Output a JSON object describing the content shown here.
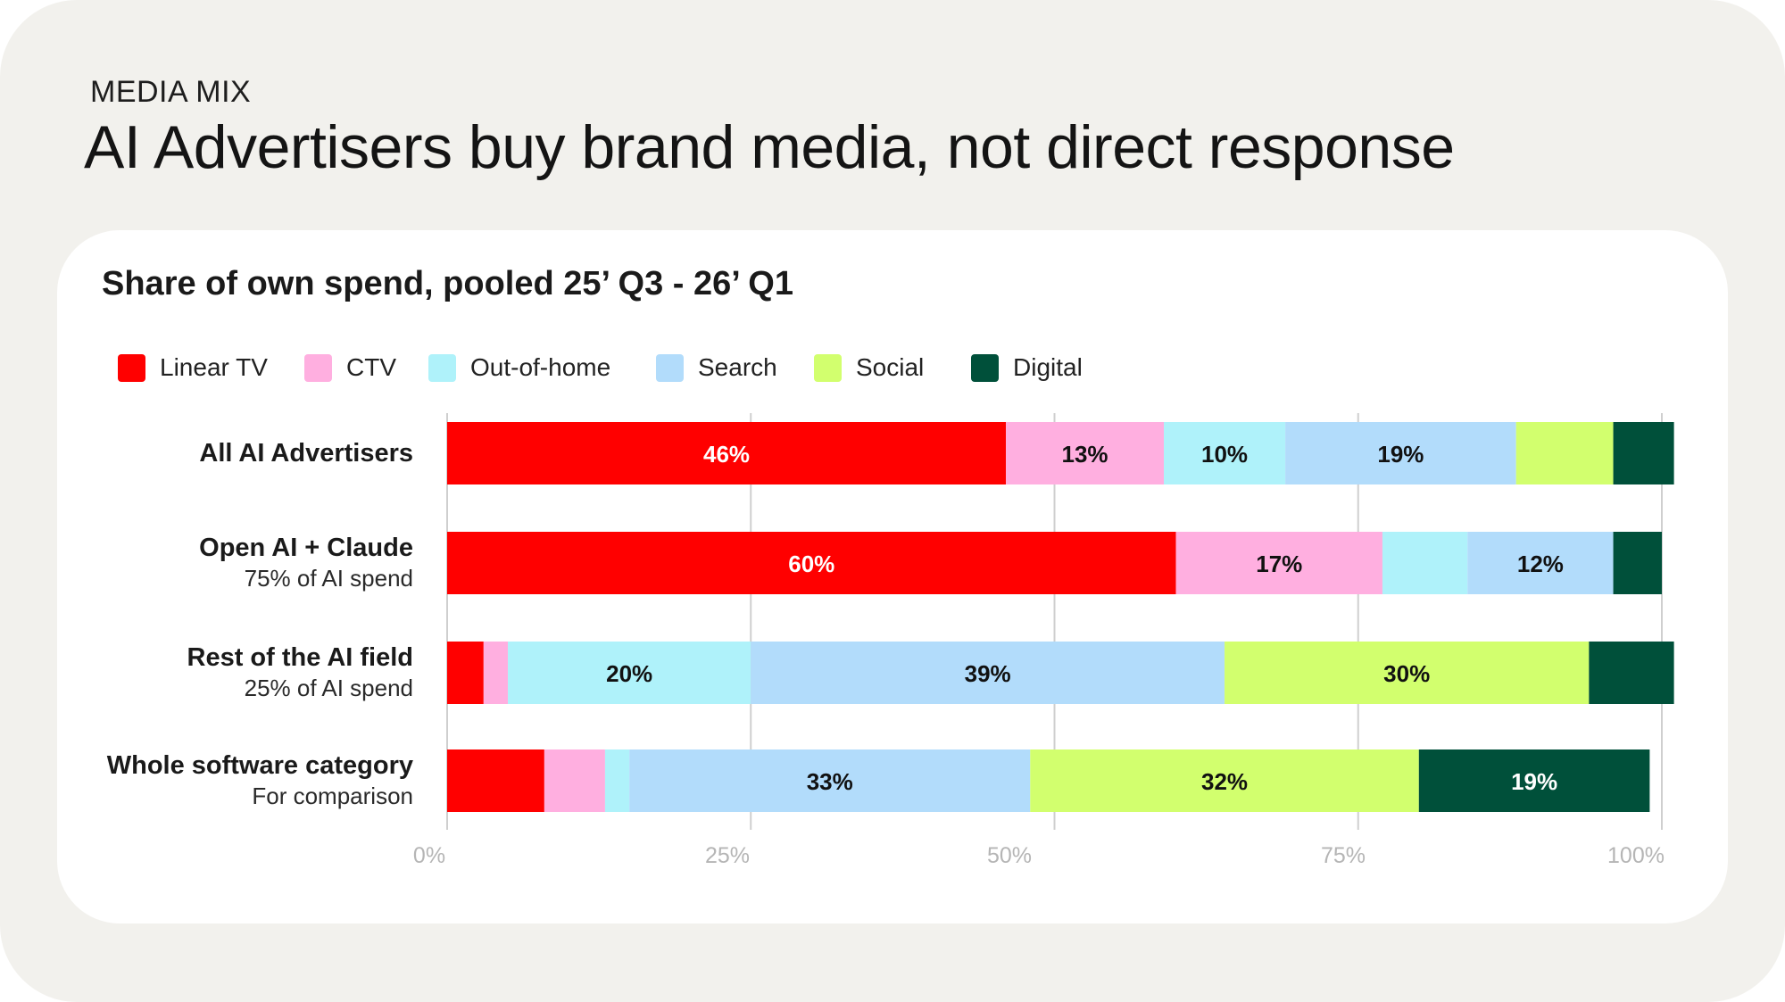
{
  "header": {
    "eyebrow": "MEDIA MIX",
    "title": "AI Advertisers buy brand media, not direct response"
  },
  "chart_data": {
    "type": "bar",
    "orientation": "horizontal",
    "stacked": true,
    "title": "Share of own spend, pooled 25’ Q3 - 26’ Q1",
    "xlabel": "",
    "ylabel": "",
    "xlim": [
      0,
      100
    ],
    "x_ticks": [
      "0%",
      "25%",
      "50%",
      "75%",
      "100%"
    ],
    "grid": true,
    "legend_position": "top-left",
    "categories": [
      {
        "name": "All AI Advertisers",
        "sub": ""
      },
      {
        "name": "Open AI + Claude",
        "sub": "75% of AI spend"
      },
      {
        "name": "Rest of the AI field",
        "sub": "25% of AI spend"
      },
      {
        "name": "Whole software category",
        "sub": "For comparison"
      }
    ],
    "series": [
      {
        "name": "Linear TV",
        "color": "#ff0000",
        "label_color": "#ffffff",
        "values": [
          46,
          60,
          3,
          8
        ],
        "labels": [
          "46%",
          "60%",
          "",
          ""
        ]
      },
      {
        "name": "CTV",
        "color": "#ffafe0",
        "label_color": "#111111",
        "values": [
          13,
          17,
          2,
          5
        ],
        "labels": [
          "13%",
          "17%",
          "",
          ""
        ]
      },
      {
        "name": "Out-of-home",
        "color": "#aff2fa",
        "label_color": "#111111",
        "values": [
          10,
          7,
          20,
          2
        ],
        "labels": [
          "10%",
          "",
          "20%",
          ""
        ]
      },
      {
        "name": "Search",
        "color": "#b2dcfb",
        "label_color": "#111111",
        "values": [
          19,
          12,
          39,
          33
        ],
        "labels": [
          "19%",
          "12%",
          "39%",
          "33%"
        ]
      },
      {
        "name": "Social",
        "color": "#d2ff6e",
        "label_color": "#111111",
        "values": [
          8,
          0,
          30,
          32
        ],
        "labels": [
          "",
          "",
          "30%",
          "32%"
        ]
      },
      {
        "name": "Digital",
        "color": "#00503a",
        "label_color": "#ffffff",
        "values": [
          5,
          4,
          7,
          19
        ],
        "labels": [
          "",
          "",
          "",
          "19%"
        ]
      }
    ]
  }
}
